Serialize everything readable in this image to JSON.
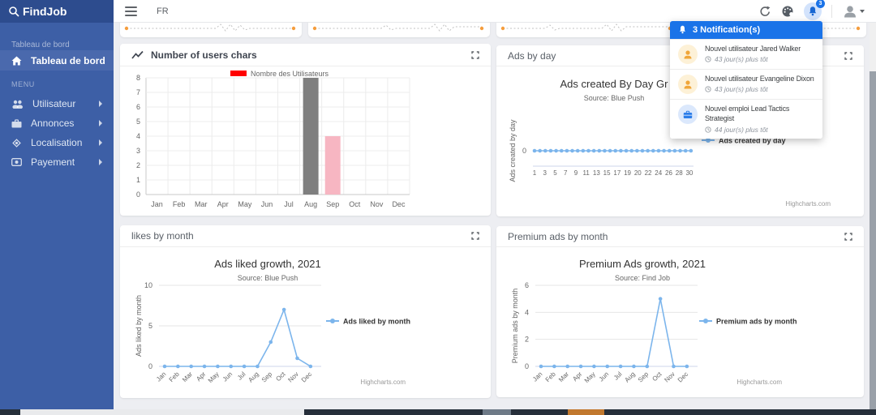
{
  "sidebar": {
    "logo_text": "FindJob",
    "section_label": "Tableau de bord",
    "dashboard_item": "Tableau de bord",
    "menu_label": "MENU",
    "items": [
      {
        "label": "Utilisateur"
      },
      {
        "label": "Annonces"
      },
      {
        "label": "Localisation"
      },
      {
        "label": "Payement"
      }
    ]
  },
  "topbar": {
    "language": "FR",
    "notification_badge": "3"
  },
  "notifications": {
    "header": "3 Notification(s)",
    "items": [
      {
        "title": "Nouvel utilisateur Jared Walker",
        "time": "43 jour(s) plus tôt"
      },
      {
        "title": "Nouvel utilisateur Evangeline Dixon",
        "time": "43 jour(s) plus tôt"
      },
      {
        "title": "Nouvel emploi Lead Tactics Strategist",
        "time": "44 jour(s) plus tôt"
      }
    ]
  },
  "panels": {
    "users_chart": "Number of users chars",
    "ads_by_day": "Ads by day",
    "likes_by_month": "likes by month",
    "premium_by_month": "Premium ads by month"
  },
  "chart_data": [
    {
      "id": "users",
      "type": "bar",
      "title": "",
      "legend": "Nombre des Utilisateurs",
      "legend_color": "#ff0000",
      "categories": [
        "Jan",
        "Feb",
        "Mar",
        "Apr",
        "May",
        "Jun",
        "Jul",
        "Aug",
        "Sep",
        "Oct",
        "Nov",
        "Dec"
      ],
      "values": [
        0,
        0,
        0,
        0,
        0,
        0,
        0,
        8,
        4,
        0,
        0,
        0
      ],
      "bar_colors": [
        "",
        "",
        "",
        "",
        "",
        "",
        "",
        "#7f7f7f",
        "#f7b6c2",
        "",
        "",
        ""
      ],
      "ylim": [
        0,
        8
      ],
      "yticks": [
        0,
        1,
        2,
        3,
        4,
        5,
        6,
        7,
        8
      ],
      "grid": true
    },
    {
      "id": "ads_by_day",
      "type": "line",
      "title": "Ads created By Day Gr",
      "subtitle": "Source: Blue Push",
      "ylabel": "Ads created by day",
      "yticks": [
        0
      ],
      "x_labels": [
        "1",
        "3",
        "5",
        "7",
        "9",
        "11",
        "13",
        "15",
        "17",
        "19",
        "20",
        "22",
        "24",
        "26",
        "28",
        "30"
      ],
      "values": [
        0,
        0,
        0,
        0,
        0,
        0,
        0,
        0,
        0,
        0,
        0,
        0,
        0,
        0,
        0,
        0,
        0,
        0,
        0,
        0,
        0,
        0,
        0,
        0,
        0,
        0,
        0,
        0,
        0,
        0
      ],
      "legend": "Ads created by day",
      "line_color": "#7cb5ec",
      "credit": "Highcharts.com",
      "legend_position": "right",
      "grid": false
    },
    {
      "id": "likes_by_month",
      "type": "line",
      "title": "Ads liked growth, 2021",
      "subtitle": "Source: Blue Push",
      "ylabel": "Ads liked by month",
      "yticks": [
        0,
        5,
        10
      ],
      "ylim": [
        0,
        10
      ],
      "categories": [
        "Jan",
        "Feb",
        "Mar",
        "Apr",
        "May",
        "Jun",
        "Jul",
        "Aug",
        "Sep",
        "Oct",
        "Nov",
        "Dec"
      ],
      "values": [
        0,
        0,
        0,
        0,
        0,
        0,
        0,
        0,
        3,
        7,
        1,
        0
      ],
      "legend": "Ads liked by month",
      "line_color": "#7cb5ec",
      "credit": "Highcharts.com",
      "legend_position": "right",
      "grid": true
    },
    {
      "id": "premium_ads",
      "type": "line",
      "title": "Premium Ads growth, 2021",
      "subtitle": "Source: Find Job",
      "ylabel": "Premium ads by month",
      "yticks": [
        0,
        2,
        4,
        6
      ],
      "ylim": [
        0,
        6
      ],
      "categories": [
        "Jan",
        "Feb",
        "Mar",
        "Apr",
        "May",
        "Jun",
        "Jul",
        "Aug",
        "Sep",
        "Oct",
        "Nov",
        "Dec"
      ],
      "values": [
        0,
        0,
        0,
        0,
        0,
        0,
        0,
        0,
        0,
        5,
        0,
        0
      ],
      "legend": "Premium ads by month",
      "line_color": "#7cb5ec",
      "credit": "Highcharts.com",
      "legend_position": "right",
      "grid": true
    }
  ],
  "decor": {
    "sparkline_color": "#c2c2c2",
    "sparkline_endpoint_color": "#f59d3d"
  }
}
